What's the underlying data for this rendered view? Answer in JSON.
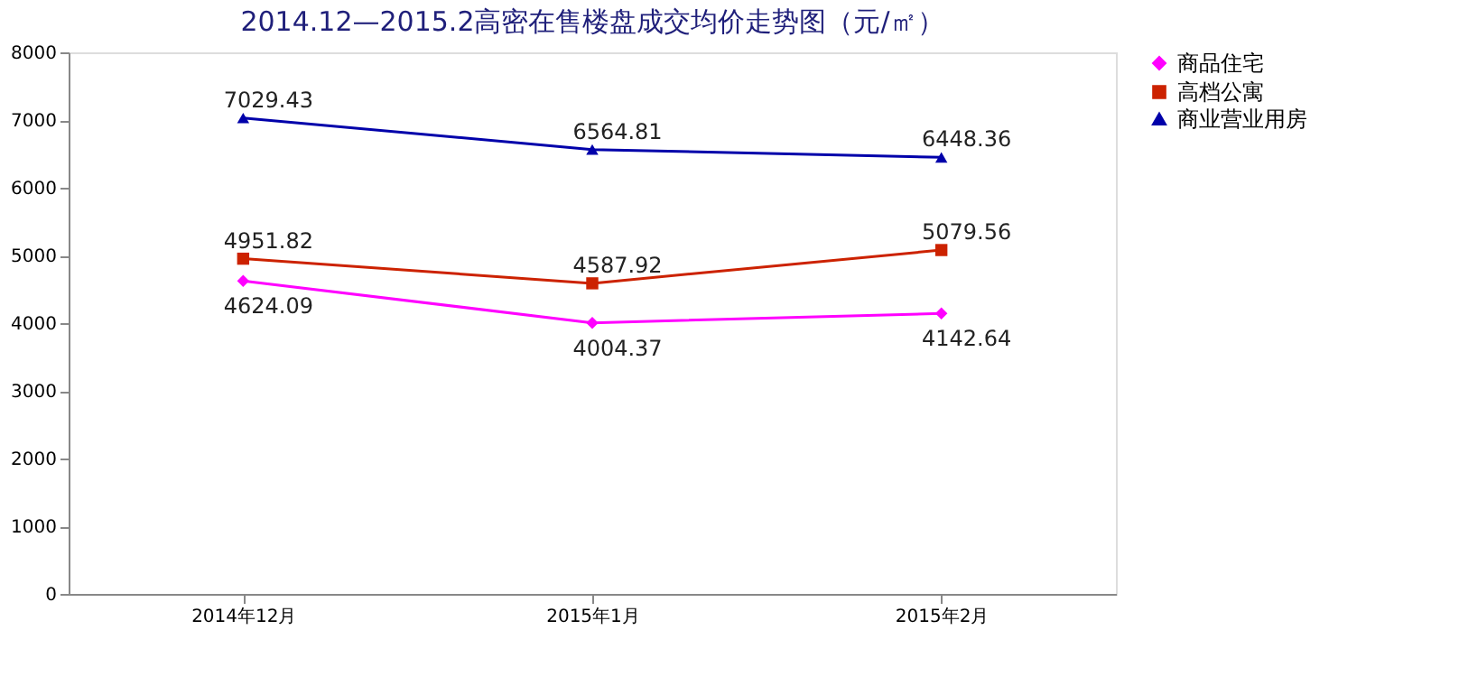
{
  "chart_data": {
    "type": "line",
    "title": "2014.12—2015.2高密在售楼盘成交均价走势图（元/㎡）",
    "categories": [
      "2014年12月",
      "2015年1月",
      "2015年2月"
    ],
    "series": [
      {
        "name": "商品住宅",
        "color": "#ff00ff",
        "marker": "diamond",
        "values": [
          4624.09,
          4004.37,
          4142.64
        ]
      },
      {
        "name": "高档公寓",
        "color": "#cc2200",
        "marker": "square",
        "values": [
          4951.82,
          4587.92,
          5079.56
        ]
      },
      {
        "name": "商业营业用房",
        "color": "#0000aa",
        "marker": "triangle",
        "values": [
          7029.43,
          6564.81,
          6448.36
        ]
      }
    ],
    "ylim": [
      0,
      8000
    ],
    "yticks": [
      0,
      1000,
      2000,
      3000,
      4000,
      5000,
      6000,
      7000,
      8000
    ],
    "grid": false,
    "legend": "right",
    "data_labels": true,
    "line_style": "solid"
  }
}
